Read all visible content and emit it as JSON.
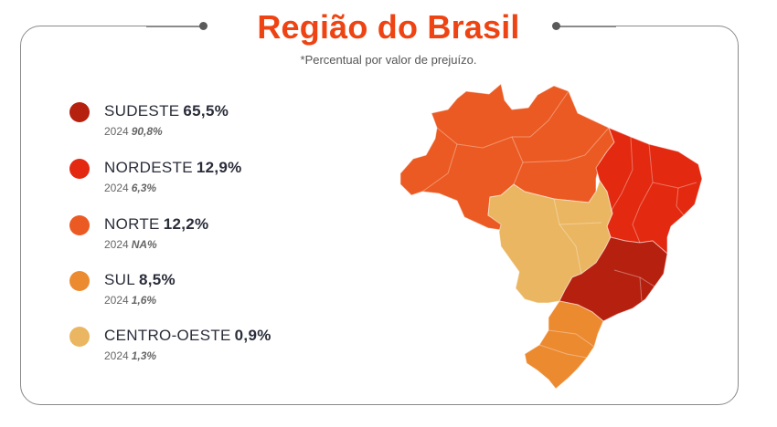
{
  "header": {
    "title": "Região do Brasil",
    "subtitle": "*Percentual por valor de prejuízo."
  },
  "chart_data": {
    "type": "choropleth",
    "title": "Região do Brasil",
    "subtitle": "*Percentual por valor de prejuízo.",
    "legend_position": "left",
    "regions": [
      {
        "name": "SUDESTE",
        "value": 65.5,
        "label": "65,5%",
        "prev_year": "2024",
        "prev_label": "90,8%",
        "color": "#b5200f"
      },
      {
        "name": "NORDESTE",
        "value": 12.9,
        "label": "12,9%",
        "prev_year": "2024",
        "prev_label": "6,3%",
        "color": "#e3290f"
      },
      {
        "name": "NORTE",
        "value": 12.2,
        "label": "12,2%",
        "prev_year": "2024",
        "prev_label": "NA%",
        "color": "#eb5a22"
      },
      {
        "name": "SUL",
        "value": 8.5,
        "label": "8,5%",
        "prev_year": "2024",
        "prev_label": "1,6%",
        "color": "#ec8a30"
      },
      {
        "name": "CENTRO-OESTE",
        "value": 0.9,
        "label": "0,9%",
        "prev_year": "2024",
        "prev_label": "1,3%",
        "color": "#eab661"
      }
    ]
  }
}
